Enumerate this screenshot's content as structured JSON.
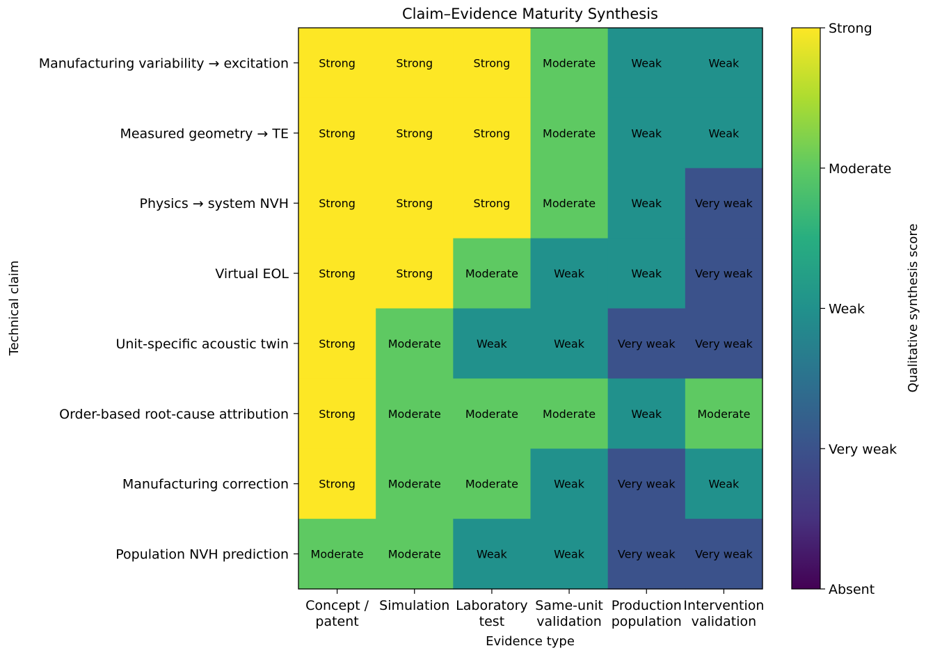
{
  "chart_data": {
    "type": "heatmap",
    "title": "Claim–Evidence Maturity Synthesis",
    "xlabel": "Evidence type",
    "ylabel": "Technical claim",
    "x_categories": [
      [
        "Concept /",
        "patent"
      ],
      [
        "Simulation"
      ],
      [
        "Laboratory",
        "test"
      ],
      [
        "Same-unit",
        "validation"
      ],
      [
        "Production",
        "population"
      ],
      [
        "Intervention",
        "validation"
      ]
    ],
    "y_categories": [
      "Manufacturing variability → excitation",
      "Measured geometry → TE",
      "Physics → system NVH",
      "Virtual EOL",
      "Unit-specific acoustic twin",
      "Order-based root-cause attribution",
      "Manufacturing correction",
      "Population NVH prediction"
    ],
    "values": [
      [
        4,
        4,
        4,
        3,
        2,
        2
      ],
      [
        4,
        4,
        4,
        3,
        2,
        2
      ],
      [
        4,
        4,
        4,
        3,
        2,
        1
      ],
      [
        4,
        4,
        3,
        2,
        2,
        1
      ],
      [
        4,
        3,
        2,
        2,
        1,
        1
      ],
      [
        4,
        3,
        3,
        3,
        2,
        3
      ],
      [
        4,
        3,
        3,
        2,
        1,
        2
      ],
      [
        3,
        3,
        2,
        2,
        1,
        1
      ]
    ],
    "level_labels": [
      "Absent",
      "Very weak",
      "Weak",
      "Moderate",
      "Strong"
    ],
    "level_colors": [
      "#440154",
      "#3b528b",
      "#21918c",
      "#5ec962",
      "#fde725"
    ],
    "colorbar": {
      "label": "Qualitative synthesis score",
      "range": [
        0,
        4
      ],
      "ticks": [
        0,
        1,
        2,
        3,
        4
      ],
      "tick_labels": [
        "Absent",
        "Very weak",
        "Weak",
        "Moderate",
        "Strong"
      ]
    }
  }
}
